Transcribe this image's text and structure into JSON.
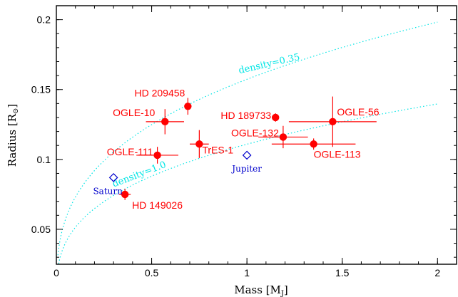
{
  "chart_data": {
    "type": "scatter",
    "title": "",
    "xlabel": "Mass [M",
    "xlabel_sub": "J",
    "xlabel_close": "]",
    "ylabel": "Radius [R",
    "ylabel_sub": "⊙",
    "ylabel_close": "]",
    "xlim": [
      0,
      2.1
    ],
    "ylim": [
      0.025,
      0.21
    ],
    "xticks": [
      0,
      0.5,
      1,
      1.5,
      2
    ],
    "xtick_labels": [
      "0",
      "0.5",
      "1",
      "1.5",
      "2"
    ],
    "yticks": [
      0.05,
      0.1,
      0.15,
      0.2
    ],
    "ytick_labels": [
      "0.05",
      "0.1",
      "0.15",
      "0.2"
    ],
    "colors": {
      "planets": "#ff0000",
      "reference": "#0000cc",
      "density": "#00e5e5"
    },
    "planets": [
      {
        "name": "HD 209458",
        "mass": 0.69,
        "radius": 0.138,
        "mass_err": 0.0,
        "radius_err": 0.006
      },
      {
        "name": "OGLE-10",
        "mass": 0.57,
        "radius": 0.127,
        "mass_err": 0.1,
        "radius_err": 0.009
      },
      {
        "name": "OGLE-111",
        "mass": 0.53,
        "radius": 0.103,
        "mass_err": 0.11,
        "radius_err": 0.006
      },
      {
        "name": "TrES-1",
        "mass": 0.75,
        "radius": 0.111,
        "mass_err": 0.05,
        "radius_err": 0.01
      },
      {
        "name": "HD 149026",
        "mass": 0.36,
        "radius": 0.075,
        "mass_err": 0.03,
        "radius_err": 0.004
      },
      {
        "name": "HD 189733",
        "mass": 1.15,
        "radius": 0.13,
        "mass_err": 0.0,
        "radius_err": 0.003
      },
      {
        "name": "OGLE-132",
        "mass": 1.19,
        "radius": 0.116,
        "mass_err": 0.13,
        "radius_err": 0.008
      },
      {
        "name": "OGLE-113",
        "mass": 1.35,
        "radius": 0.111,
        "mass_err": 0.22,
        "radius_err": 0.004
      },
      {
        "name": "OGLE-56",
        "mass": 1.45,
        "radius": 0.127,
        "mass_err": 0.23,
        "radius_err": 0.018
      }
    ],
    "reference": [
      {
        "name": "Saturn",
        "mass": 0.3,
        "radius": 0.087
      },
      {
        "name": "Jupiter",
        "mass": 1.0,
        "radius": 0.103
      }
    ],
    "density_curves": [
      {
        "name": "density=0.35",
        "density": 0.35
      },
      {
        "name": "density=1.0",
        "density": 1.0
      }
    ]
  }
}
